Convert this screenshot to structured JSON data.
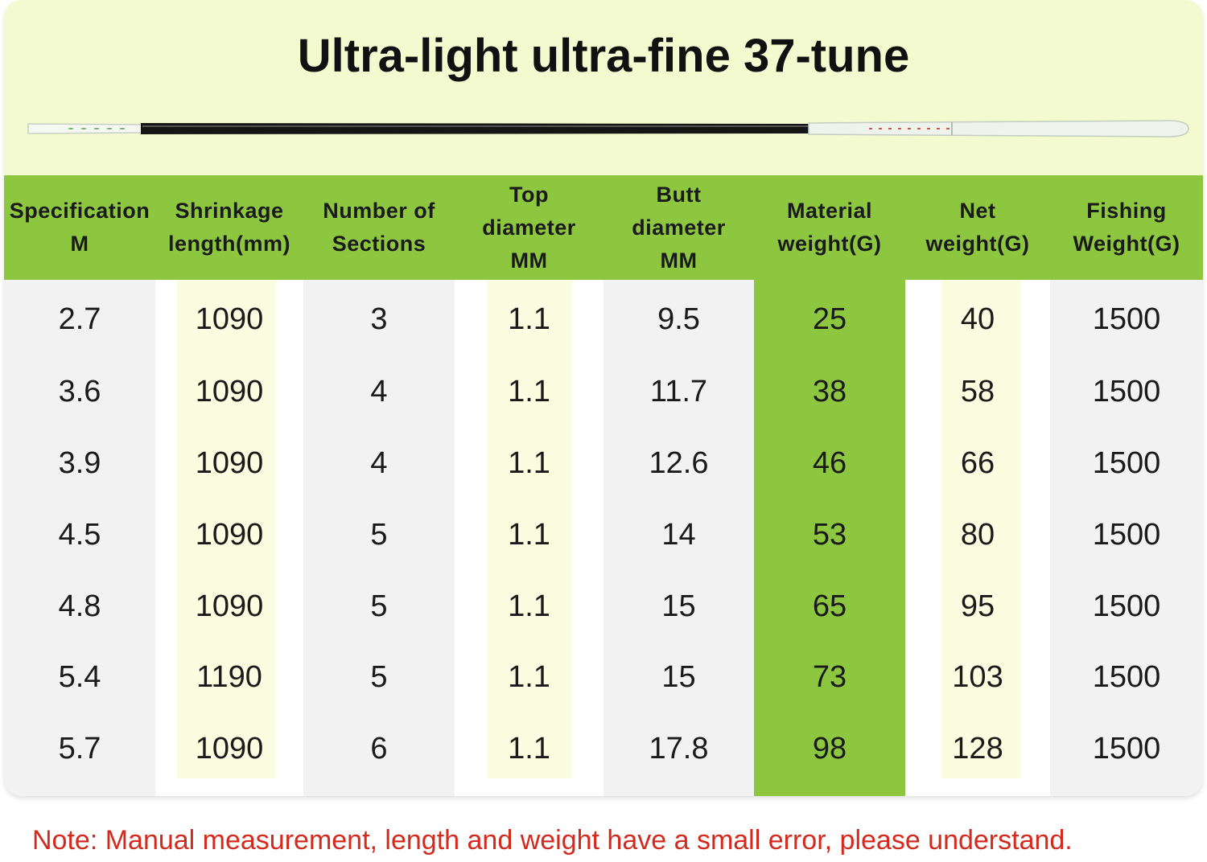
{
  "title": "Ultra-light ultra-fine 37-tune",
  "table": {
    "header": [
      [
        "Specification",
        "M"
      ],
      [
        "Shrinkage",
        "length(mm)"
      ],
      [
        "Number of",
        "Sections"
      ],
      [
        "Top",
        "diameter",
        "MM"
      ],
      [
        "Butt",
        "diameter",
        "MM"
      ],
      [
        "Material",
        "weight(G)"
      ],
      [
        "Net",
        "weight(G)"
      ],
      [
        "Fishing",
        "Weight(G)"
      ]
    ],
    "rows": [
      [
        "2.7",
        "1090",
        "3",
        "1.1",
        "9.5",
        "25",
        "40",
        "1500"
      ],
      [
        "3.6",
        "1090",
        "4",
        "1.1",
        "11.7",
        "38",
        "58",
        "1500"
      ],
      [
        "3.9",
        "1090",
        "4",
        "1.1",
        "12.6",
        "46",
        "66",
        "1500"
      ],
      [
        "4.5",
        "1090",
        "5",
        "1.1",
        "14",
        "53",
        "80",
        "1500"
      ],
      [
        "4.8",
        "1090",
        "5",
        "1.1",
        "15",
        "65",
        "95",
        "1500"
      ],
      [
        "5.4",
        "1190",
        "5",
        "1.1",
        "15",
        "73",
        "103",
        "1500"
      ],
      [
        "5.7",
        "1090",
        "6",
        "1.1",
        "17.8",
        "98",
        "128",
        "1500"
      ]
    ]
  },
  "note": "Note: Manual measurement, length and weight have a small error, please understand."
}
